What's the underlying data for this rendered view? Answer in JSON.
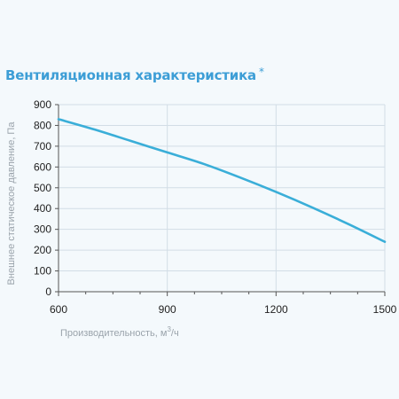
{
  "chart_data": {
    "type": "line",
    "title": "Вентиляционная характеристика",
    "title_suffix": "*",
    "xlabel": "Производительность, м",
    "xlabel_sup": "3",
    "xlabel_suffix": "/ч",
    "ylabel": "Внешнее статическое давление, Па",
    "xlim": [
      600,
      1500
    ],
    "ylim": [
      0,
      900
    ],
    "x_ticks": [
      600,
      900,
      1200,
      1500
    ],
    "y_ticks": [
      0,
      100,
      200,
      300,
      400,
      500,
      600,
      700,
      800,
      900
    ],
    "grid": true,
    "series": [
      {
        "color": "#3aaed8",
        "x": [
          600,
          700,
          800,
          900,
          1000,
          1100,
          1200,
          1300,
          1400,
          1500
        ],
        "y": [
          830,
          780,
          725,
          670,
          615,
          550,
          480,
          405,
          325,
          240
        ]
      }
    ]
  },
  "colors": {
    "title": "#3d9ed6",
    "grid": "#d2dde6",
    "axis": "#555555",
    "background": "#f4f9fc"
  }
}
